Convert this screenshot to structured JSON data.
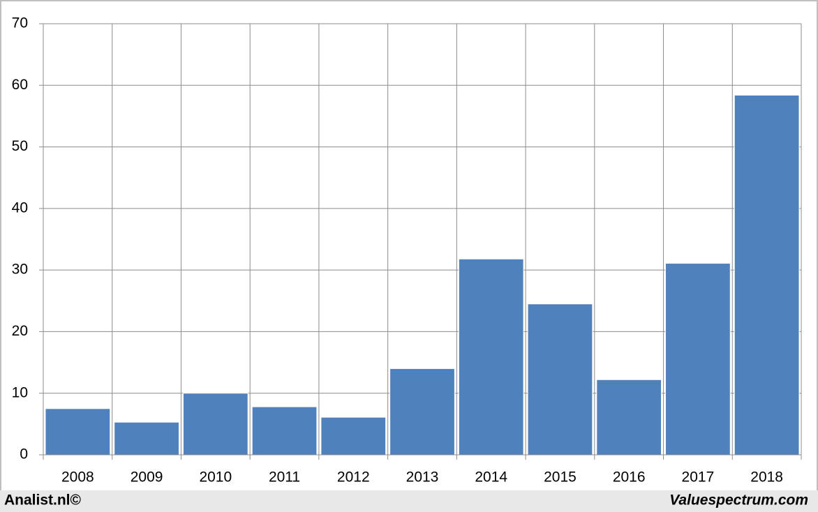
{
  "chart_data": {
    "type": "bar",
    "categories": [
      "2008",
      "2009",
      "2010",
      "2011",
      "2012",
      "2013",
      "2014",
      "2015",
      "2016",
      "2017",
      "2018"
    ],
    "values": [
      7.5,
      5.3,
      10.0,
      7.8,
      6.1,
      14.0,
      31.8,
      24.5,
      12.2,
      31.1,
      58.4
    ],
    "color": "#4f81bd",
    "ylim": [
      0,
      70
    ],
    "yticks": [
      0,
      10,
      20,
      30,
      40,
      50,
      60,
      70
    ],
    "grid": true,
    "annotations": [
      "Analist.nl©",
      "Valuespectrum.com"
    ]
  }
}
